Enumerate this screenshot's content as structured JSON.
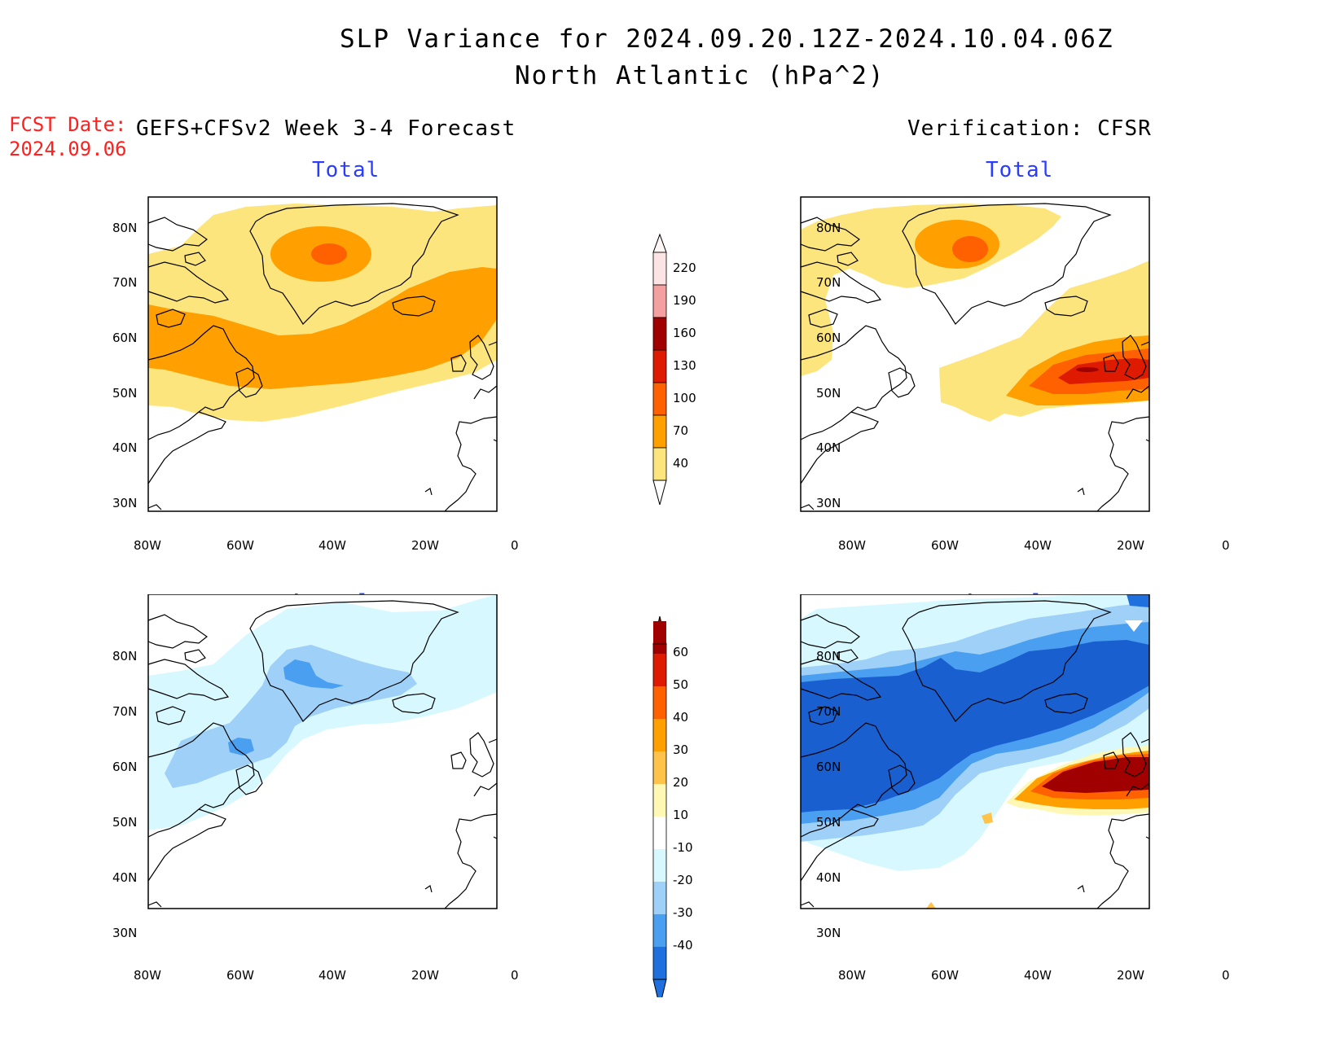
{
  "header": {
    "title_line1": "SLP Variance for 2024.09.20.12Z-2024.10.04.06Z",
    "title_line2": "North Atlantic (hPa^2)",
    "fcst_label": "FCST Date:",
    "fcst_date": "2024.09.06"
  },
  "columns": {
    "left_title": "GEFS+CFSv2 Week 3-4 Forecast",
    "right_title": "Verification: CFSR"
  },
  "panels": {
    "forecast_total": {
      "title": "Total"
    },
    "forecast_anomaly": {
      "title": "Anomaly"
    },
    "verification_total": {
      "title": "Total"
    },
    "verification_anomaly": {
      "title": "Anomaly"
    }
  },
  "axes": {
    "lat_labels": [
      "80N",
      "70N",
      "60N",
      "50N",
      "40N",
      "30N"
    ],
    "lon_labels": [
      "80W",
      "60W",
      "40W",
      "20W",
      "0"
    ]
  },
  "legends": {
    "total": {
      "labels": [
        "220",
        "190",
        "160",
        "130",
        "100",
        "70",
        "40"
      ],
      "colors": [
        "#fde4e4",
        "#f4a0a0",
        "#a00000",
        "#de1a00",
        "#ff6000",
        "#ff9f00",
        "#fde57e"
      ]
    },
    "anomaly": {
      "labels": [
        "60",
        "50",
        "40",
        "30",
        "20",
        "10",
        "-10",
        "-20",
        "-30",
        "-40"
      ],
      "colors": [
        "#a00000",
        "#de1a00",
        "#ff6000",
        "#ff9f00",
        "#ffc24a",
        "#fff8b4",
        "#ffffff",
        "#d8f8ff",
        "#9ed0f8",
        "#4a9ff0",
        "#1f6fdf"
      ]
    }
  },
  "palette": {
    "total_40_70": "#fde57e",
    "total_70_100": "#ff9f00",
    "total_100_130": "#ff6000",
    "total_130_160": "#de1a00",
    "total_160_190": "#a00000",
    "anom_neg_10_20": "#d8f8ff",
    "anom_neg_20_30": "#9ed0f8",
    "anom_neg_30_40": "#4a9ff0",
    "anom_neg_40": "#1f6fdf",
    "anom_deep": "#1a5fd0",
    "anom_pos_10_20": "#fff8b4",
    "anom_pos_30_40": "#ff9f00",
    "anom_pos_40_50": "#ff6000",
    "anom_pos_60": "#a00000"
  }
}
